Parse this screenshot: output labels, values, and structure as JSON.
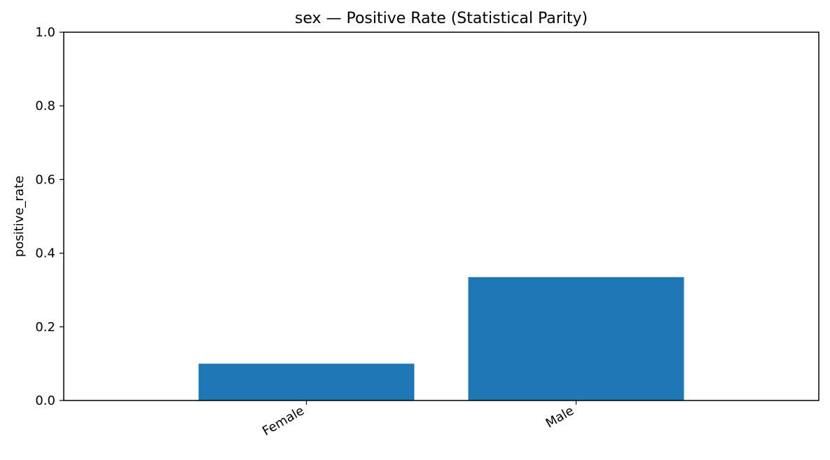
{
  "chart_data": {
    "type": "bar",
    "title": "sex — Positive Rate (Statistical Parity)",
    "xlabel": "",
    "ylabel": "positive_rate",
    "categories": [
      "Female",
      "Male"
    ],
    "values": [
      0.1,
      0.335
    ],
    "ylim": [
      0.0,
      1.0
    ],
    "yticks": [
      "0.0",
      "0.2",
      "0.4",
      "0.6",
      "0.8",
      "1.0"
    ],
    "bar_color": "#1f77b4",
    "grid": false,
    "legend": "none"
  }
}
